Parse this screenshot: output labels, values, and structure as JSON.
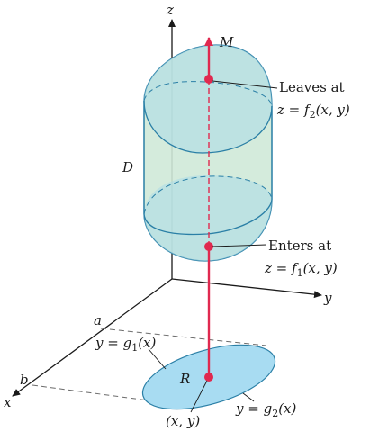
{
  "axes": {
    "x": "x",
    "y": "y",
    "z": "z"
  },
  "labels": {
    "M": "M",
    "D": "D",
    "R": "R",
    "a": "a",
    "b": "b",
    "xy_point": "(x, y)",
    "leaves_line1": "Leaves at",
    "leaves_line2_prefix": "z = f",
    "leaves_sub": "2",
    "leaves_line2_suffix": "(x, y)",
    "enters_line1": "Enters at",
    "enters_line2_prefix": "z = f",
    "enters_sub": "1",
    "enters_line2_suffix": "(x, y)",
    "g1_prefix": "y = g",
    "g1_sub": "1",
    "g1_suffix": "(x)",
    "g2_prefix": "y = g",
    "g2_sub": "2",
    "g2_suffix": "(x)"
  },
  "colors": {
    "solid_fill": "#cfe9d8",
    "solid_side": "#b7dfd0",
    "cap_fill": "#a9dbe8",
    "region_fill": "#a8dcf2",
    "ray": "#e0294f",
    "axis": "#1a1a1a",
    "dash": "#6b6b6b",
    "outline": "#2a7fa6"
  }
}
